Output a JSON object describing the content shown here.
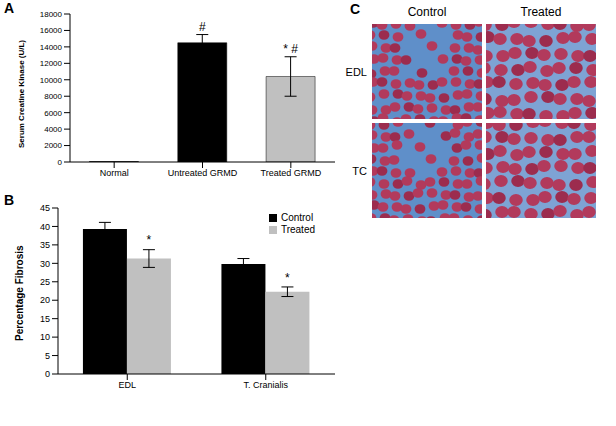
{
  "chart_data": [
    {
      "type": "bar",
      "label": "A",
      "ylabel": "Serum Creatine Kinase (U/L)",
      "categories": [
        "Normal",
        "Untreated GRMD",
        "Treated GRMD"
      ],
      "values": [
        60,
        14500,
        10400
      ],
      "errors": [
        0,
        1000,
        2400
      ],
      "annotations": [
        null,
        "#",
        "* #"
      ],
      "colors": [
        "#000000",
        "#000000",
        "#c0c0c0"
      ],
      "ylim": [
        0,
        18000
      ],
      "yticks": [
        0,
        2000,
        4000,
        6000,
        8000,
        10000,
        12000,
        14000,
        16000,
        18000
      ]
    },
    {
      "type": "bar",
      "label": "B",
      "ylabel": "Percentage Fibrosis",
      "categories": [
        "EDL",
        "T. Cranialis"
      ],
      "series": [
        {
          "name": "Control",
          "color": "#000000",
          "values": [
            39.3,
            29.8
          ],
          "errors": [
            1.8,
            1.5
          ]
        },
        {
          "name": "Treated",
          "color": "#c0c0c0",
          "values": [
            31.3,
            22.3
          ],
          "errors": [
            2.4,
            1.3
          ],
          "annotations": [
            "*",
            "*"
          ]
        }
      ],
      "ylim": [
        0,
        45
      ],
      "yticks": [
        0,
        5,
        10,
        15,
        20,
        25,
        30,
        35,
        40,
        45
      ],
      "legend": "top-right"
    }
  ],
  "panel_c": {
    "label": "C",
    "columns": [
      "Control",
      "Treated"
    ],
    "rows": [
      "EDL",
      "TC"
    ]
  }
}
